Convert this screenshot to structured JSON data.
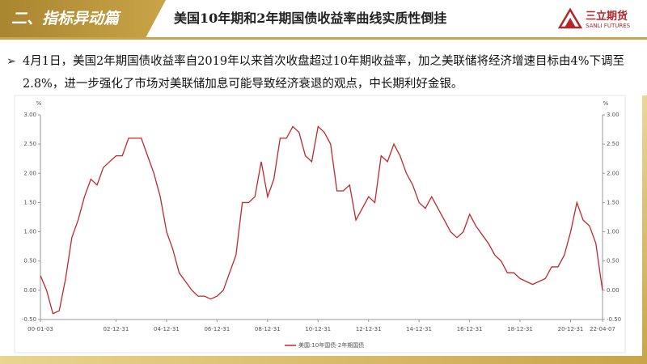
{
  "header": {
    "section": "二、指标异动篇",
    "title": "美国10年期和2年期国债收益率曲线实质性倒挂",
    "logo_cn": "三立期货",
    "logo_en": "SANLI FUTURES"
  },
  "bullet": "4月1日，美国2年期国债收益率自2019年以来首次收盘超过10年期收益率，加之美联储将经济增速目标由4%下调至2.8%，进一步强化了市场对美联储加息可能导致经济衰退的观点，中长期利好金银。",
  "chart_data": {
    "type": "line",
    "y_unit": "%",
    "y2_unit": "%",
    "x": [
      "00-01-03",
      "00-04-01",
      "00-07-01",
      "00-10-01",
      "01-01-01",
      "01-04-01",
      "01-07-01",
      "01-10-01",
      "02-01-01",
      "02-04-01",
      "02-07-01",
      "02-10-01",
      "03-01-01",
      "03-04-01",
      "03-07-01",
      "03-10-01",
      "04-01-01",
      "04-04-01",
      "04-07-01",
      "04-10-01",
      "05-01-01",
      "05-04-01",
      "05-07-01",
      "05-10-01",
      "06-01-01",
      "06-04-01",
      "06-07-01",
      "06-10-01",
      "07-01-01",
      "07-04-01",
      "07-07-01",
      "07-10-01",
      "08-01-01",
      "08-04-01",
      "08-07-01",
      "08-10-01",
      "09-01-01",
      "09-04-01",
      "09-07-01",
      "09-10-01",
      "10-01-01",
      "10-04-01",
      "10-07-01",
      "10-10-01",
      "11-01-01",
      "11-04-01",
      "11-07-01",
      "11-10-01",
      "12-01-01",
      "12-04-01",
      "12-07-01",
      "12-10-01",
      "13-01-01",
      "13-04-01",
      "13-07-01",
      "13-10-01",
      "14-01-01",
      "14-04-01",
      "14-07-01",
      "14-10-01",
      "15-01-01",
      "15-04-01",
      "15-07-01",
      "15-10-01",
      "16-01-01",
      "16-04-01",
      "16-07-01",
      "16-10-01",
      "17-01-01",
      "17-04-01",
      "17-07-01",
      "17-10-01",
      "18-01-01",
      "18-04-01",
      "18-07-01",
      "18-10-01",
      "19-01-01",
      "19-04-01",
      "19-07-01",
      "19-10-01",
      "20-01-01",
      "20-04-01",
      "20-07-01",
      "20-10-01",
      "21-01-01",
      "21-04-01",
      "21-07-01",
      "21-10-01",
      "22-01-01",
      "22-03-01",
      "22-04-07"
    ],
    "series": [
      {
        "name": "美国:10年国债-2年期国债",
        "color": "#c0282d",
        "values": [
          0.25,
          0.0,
          -0.4,
          -0.35,
          0.2,
          0.9,
          1.2,
          1.6,
          1.9,
          1.8,
          2.1,
          2.2,
          2.3,
          2.3,
          2.6,
          2.6,
          2.6,
          2.3,
          2.0,
          1.6,
          1.0,
          0.7,
          0.3,
          0.15,
          0.0,
          -0.1,
          -0.1,
          -0.15,
          -0.1,
          0.0,
          0.3,
          0.6,
          1.5,
          1.5,
          1.6,
          2.2,
          1.6,
          1.9,
          2.6,
          2.6,
          2.8,
          2.7,
          2.3,
          2.2,
          2.8,
          2.7,
          2.5,
          1.7,
          1.7,
          1.8,
          1.2,
          1.4,
          1.6,
          1.5,
          2.3,
          2.2,
          2.5,
          2.3,
          2.0,
          1.8,
          1.5,
          1.4,
          1.6,
          1.4,
          1.2,
          1.0,
          0.9,
          1.0,
          1.3,
          1.1,
          0.95,
          0.8,
          0.6,
          0.5,
          0.3,
          0.3,
          0.2,
          0.15,
          0.1,
          0.15,
          0.2,
          0.4,
          0.4,
          0.6,
          1.0,
          1.5,
          1.2,
          1.1,
          0.8,
          0.3,
          0.0
        ]
      }
    ],
    "xlim": [
      "00-01-03",
      "22-04-07"
    ],
    "xticks": [
      "00-01-03",
      "02-12-31",
      "04-12-31",
      "06-12-31",
      "08-12-31",
      "10-12-31",
      "12-12-31",
      "14-12-31",
      "16-12-31",
      "18-12-31",
      "20-12-31",
      "22-04-07"
    ],
    "ylim": [
      -0.5,
      3.0
    ],
    "yticks": [
      {
        "value": -0.5,
        "label": "-0.50"
      },
      {
        "value": 0,
        "label": "0.00"
      },
      {
        "value": 0.5,
        "label": "0.50"
      },
      {
        "value": 1,
        "label": "1.00"
      },
      {
        "value": 1.5,
        "label": "1.50"
      },
      {
        "value": 2,
        "label": "2.00"
      },
      {
        "value": 2.5,
        "label": "2.50"
      },
      {
        "value": 3,
        "label": "3.00"
      }
    ],
    "y2lim": [
      -0.5,
      3.0
    ],
    "y2ticks": [
      {
        "value": -0.5,
        "label": "-0.50"
      },
      {
        "value": 0,
        "label": "0.00"
      },
      {
        "value": 0.5,
        "label": "0.50"
      },
      {
        "value": 1,
        "label": "1.00"
      },
      {
        "value": 1.5,
        "label": "1.50"
      },
      {
        "value": 2,
        "label": "2.00"
      },
      {
        "value": 2.5,
        "label": "2.50"
      },
      {
        "value": 3,
        "label": "3.00"
      }
    ],
    "legend": "bottom"
  }
}
